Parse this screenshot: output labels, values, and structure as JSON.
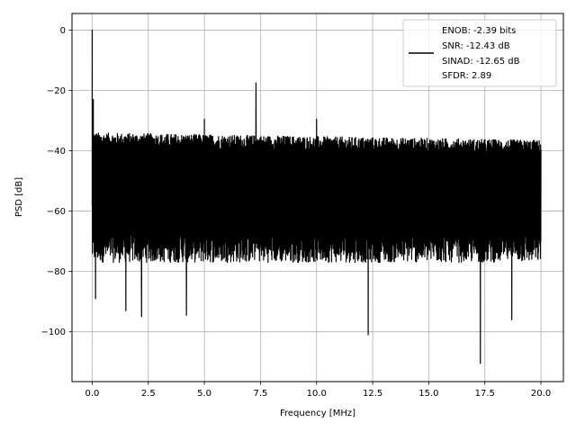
{
  "chart_data": {
    "type": "line",
    "title": "",
    "xlabel": "Frequency [MHz]",
    "ylabel": "PSD [dB]",
    "xlim": [
      -0.9,
      21.0
    ],
    "ylim": [
      -116.5,
      5.5
    ],
    "x_ticks": [
      0.0,
      2.5,
      5.0,
      7.5,
      10.0,
      12.5,
      15.0,
      17.5,
      20.0
    ],
    "x_tick_labels": [
      "0.0",
      "2.5",
      "5.0",
      "7.5",
      "10.0",
      "12.5",
      "15.0",
      "17.5",
      "20.0"
    ],
    "y_ticks": [
      0,
      -20,
      -40,
      -60,
      -80,
      -100
    ],
    "y_tick_labels": [
      "0",
      "−20",
      "−40",
      "−60",
      "−80",
      "−100"
    ],
    "grid": true,
    "legend_position": "top-right",
    "series": [
      {
        "name": "ENOB: -2.39 bits\nSNR: -12.43 dB\nSINAD: -12.65 dB\nSFDR: 2.89",
        "color": "#000000",
        "noise_band": {
          "upper_approx": -36,
          "lower_approx": -80
        },
        "spikes": [
          {
            "x": 0.0,
            "y": 0.0
          },
          {
            "x": 0.05,
            "y": -23
          },
          {
            "x": 5.0,
            "y": -29.5
          },
          {
            "x": 7.3,
            "y": -17.5
          },
          {
            "x": 10.0,
            "y": -29.5
          },
          {
            "x": 1.5,
            "y": -31
          }
        ],
        "dips": [
          {
            "x": 0.15,
            "y": -89
          },
          {
            "x": 1.5,
            "y": -93
          },
          {
            "x": 2.2,
            "y": -95
          },
          {
            "x": 4.2,
            "y": -94.5
          },
          {
            "x": 12.3,
            "y": -101
          },
          {
            "x": 17.3,
            "y": -110.5
          },
          {
            "x": 18.7,
            "y": -96
          }
        ]
      }
    ]
  },
  "legend": {
    "lines": [
      "ENOB: -2.39 bits",
      "SNR: -12.43 dB",
      "SINAD: -12.65 dB",
      "SFDR: 2.89"
    ]
  }
}
